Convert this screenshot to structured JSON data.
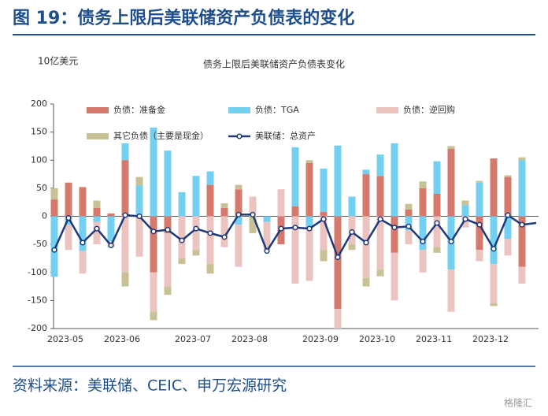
{
  "header": {
    "title": "图 19：债务上限后美联储资产负债表的变化"
  },
  "source": "资料来源：美联储、CEIC、申万宏源研究",
  "watermark": "格隆汇",
  "chart_data": {
    "type": "bar",
    "title": "债务上限后美联储资产负债表变化",
    "y_label": "10亿美元",
    "categories": [
      "2023-05",
      null,
      null,
      null,
      "2023-06",
      null,
      null,
      null,
      null,
      "2023-07",
      null,
      null,
      null,
      "2023-08",
      null,
      null,
      null,
      null,
      "2023-09",
      null,
      null,
      null,
      "2023-10",
      null,
      null,
      null,
      "2023-11",
      null,
      null,
      null,
      "2023-12",
      null,
      null,
      null,
      null
    ],
    "ylim": [
      -200,
      200
    ],
    "yticks": [
      -200,
      -150,
      -100,
      -50,
      0,
      50,
      100,
      150,
      200
    ],
    "legend": "top",
    "series": [
      {
        "name": "负债：准备金",
        "color": "#d4796b",
        "values": [
          30,
          60,
          52,
          15,
          5,
          100,
          0,
          -100,
          -30,
          0,
          0,
          56,
          15,
          48,
          0,
          0,
          -50,
          18,
          95,
          8,
          -165,
          0,
          75,
          72,
          -65,
          12,
          50,
          40,
          120,
          0,
          -60,
          103,
          70,
          -90,
          null
        ]
      },
      {
        "name": "负债：TGA",
        "color": "#74d0f1",
        "values": [
          -108,
          -15,
          -62,
          -10,
          -45,
          30,
          55,
          158,
          117,
          43,
          72,
          24,
          0,
          -15,
          0,
          -10,
          0,
          105,
          -20,
          77,
          126,
          35,
          8,
          38,
          130,
          -25,
          -60,
          58,
          -95,
          20,
          60,
          -85,
          -40,
          100,
          null
        ]
      },
      {
        "name": "负债：逆回购",
        "color": "#ebc4c0",
        "values": [
          0,
          -45,
          -40,
          -40,
          -10,
          -100,
          -72,
          -70,
          -95,
          -75,
          -60,
          -85,
          -55,
          -75,
          35,
          -50,
          48,
          -120,
          -95,
          -60,
          -35,
          -50,
          -110,
          -95,
          -85,
          -25,
          -40,
          -55,
          -75,
          -20,
          -20,
          -70,
          -30,
          -30,
          null
        ]
      },
      {
        "name": "其它负债（主要是现金）",
        "color": "#c9c196",
        "values": [
          20,
          0,
          0,
          13,
          0,
          -25,
          15,
          -15,
          -15,
          -10,
          -10,
          -17,
          8,
          8,
          -30,
          0,
          0,
          0,
          5,
          -20,
          0,
          -10,
          -15,
          -12,
          0,
          10,
          12,
          -10,
          5,
          8,
          3,
          -5,
          3,
          5,
          null
        ]
      },
      {
        "name": "美联储：总资产",
        "color": "#1f3a7a",
        "chart": "line",
        "values": [
          -60,
          -3,
          -47,
          -22,
          -52,
          2,
          0,
          -27,
          -24,
          -43,
          -22,
          -30,
          -37,
          3,
          3,
          -62,
          -22,
          -20,
          -22,
          -5,
          -73,
          -28,
          -47,
          -5,
          -20,
          -18,
          -45,
          -12,
          -45,
          -5,
          -15,
          -58,
          2,
          -15,
          -12
        ]
      }
    ]
  }
}
